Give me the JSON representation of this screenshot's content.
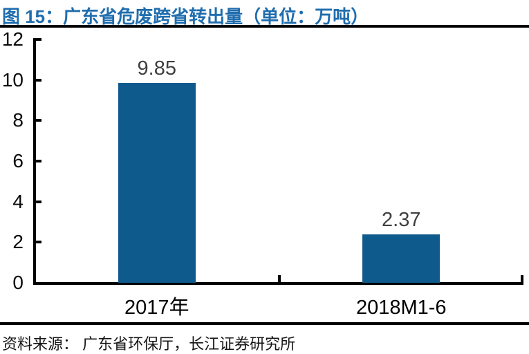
{
  "figure": {
    "title": "图 15：广东省危废跨省转出量（单位：万吨）",
    "source": "资料来源： 广东省环保厅，长江证券研究所"
  },
  "colors": {
    "title_blue": "#1F6DAE",
    "bar_blue": "#0F5A8C",
    "axis_black": "#000000",
    "value_label_gray": "#3F3F3F"
  },
  "chart_data": {
    "type": "bar",
    "title": "广东省危废跨省转出量",
    "unit": "万吨",
    "categories": [
      "2017年",
      "2018M1-6"
    ],
    "values": [
      9.85,
      2.37
    ],
    "value_labels": [
      "9.85",
      "2.37"
    ],
    "xlabel": "",
    "ylabel": "",
    "ylim": [
      0,
      12
    ],
    "yticks": [
      0,
      2,
      4,
      6,
      8,
      10,
      12
    ],
    "grid": false,
    "legend": false,
    "bar_color": "#0F5A8C"
  }
}
